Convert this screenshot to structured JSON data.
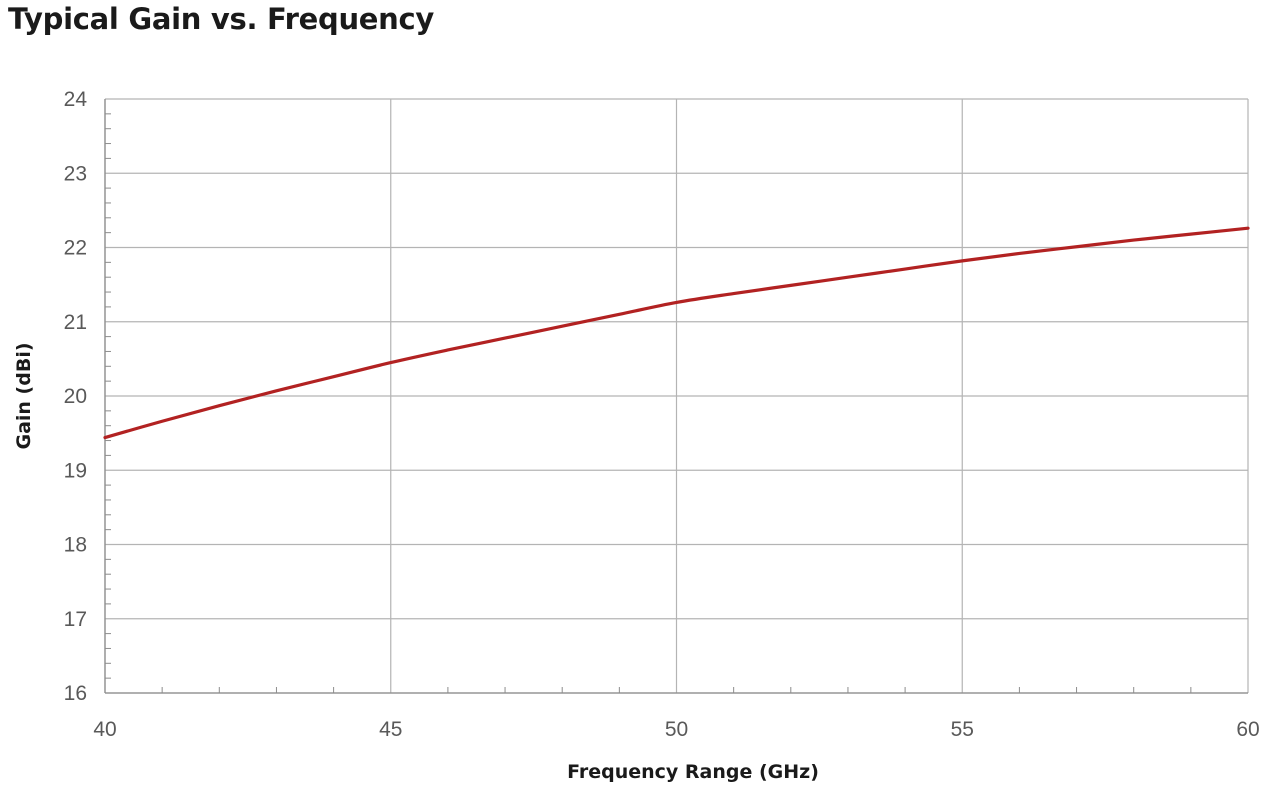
{
  "chart_data": {
    "type": "line",
    "title": "Typical Gain vs. Frequency",
    "xlabel": "Frequency Range (GHz)",
    "ylabel": "Gain (dBi)",
    "xlim": [
      40,
      60
    ],
    "ylim": [
      16,
      24
    ],
    "xticks": [
      40,
      45,
      50,
      55,
      60
    ],
    "yticks": [
      16,
      17,
      18,
      19,
      20,
      21,
      22,
      23,
      24
    ],
    "x_minor_step": 1,
    "y_minor_step": 0.2,
    "grid": true,
    "series": [
      {
        "color": "#b22222",
        "x": [
          40,
          41,
          42,
          43,
          44,
          45,
          46,
          47,
          48,
          49,
          50,
          51,
          52,
          53,
          54,
          55,
          56,
          57,
          58,
          59,
          60
        ],
        "y": [
          19.44,
          19.66,
          19.87,
          20.07,
          20.26,
          20.45,
          20.62,
          20.78,
          20.94,
          21.1,
          21.26,
          21.38,
          21.49,
          21.6,
          21.71,
          21.82,
          21.92,
          22.01,
          22.1,
          22.18,
          22.26
        ]
      }
    ]
  }
}
